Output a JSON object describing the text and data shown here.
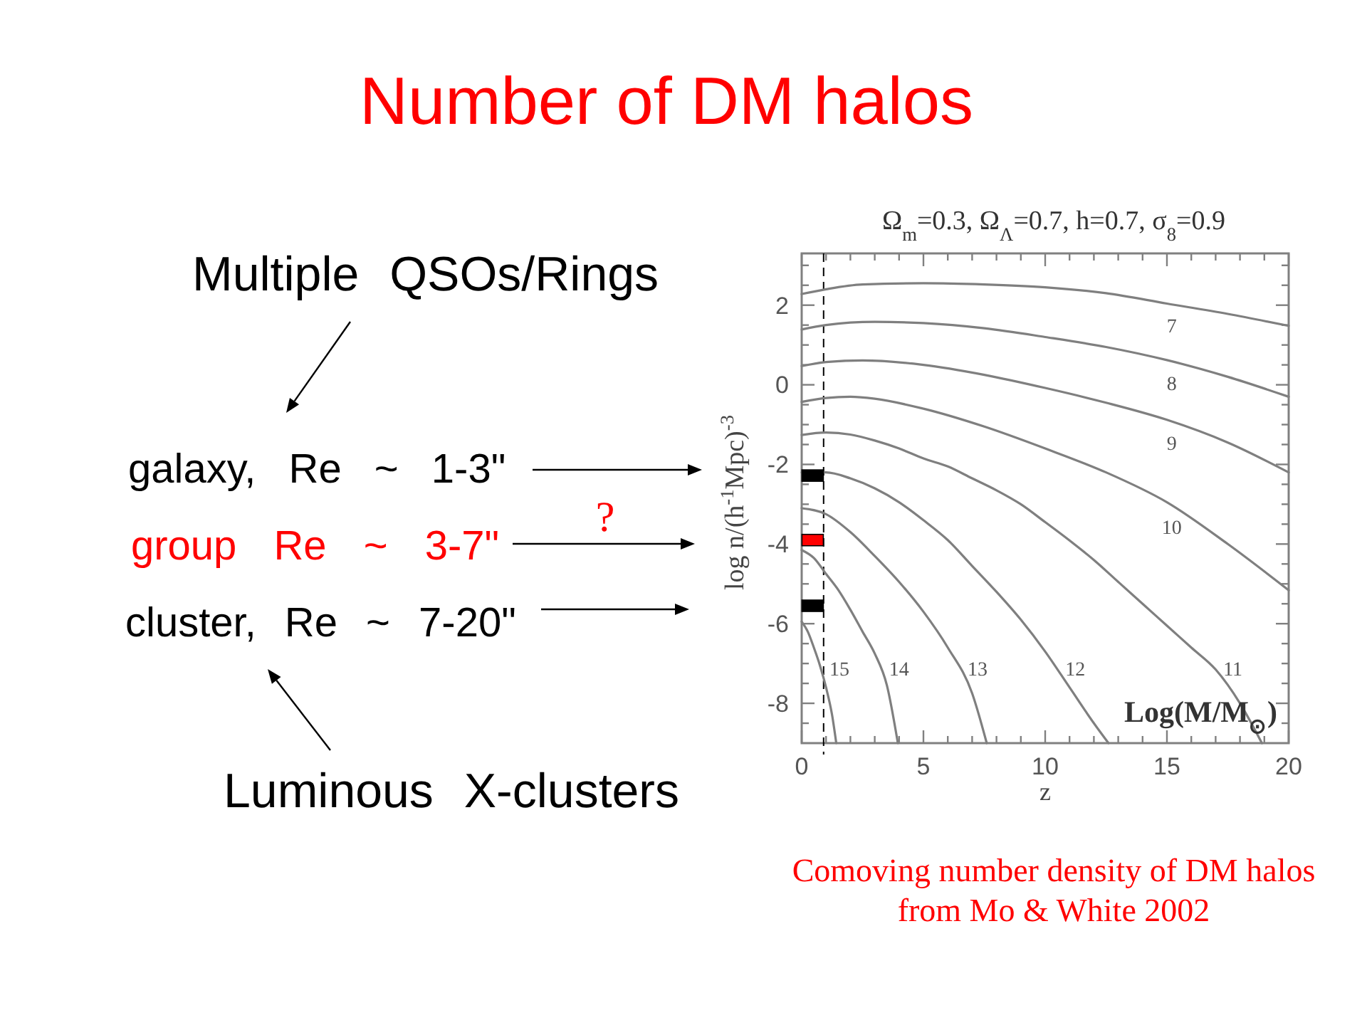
{
  "chart_data": {
    "type": "line",
    "title": "Number of DM halos",
    "subtitle": "Ω$_{m}$=0.3, Ω$_{Λ}$=0.7, h=0.7, σ$_{8}$=0.9",
    "xlabel": "z",
    "ylabel": "log n/(h$^{-1}$Mpc)$^{-3}$",
    "legend_title": "Log(M/M$_{⊙}$)",
    "legend": "bottom right",
    "xlim": [
      0,
      20
    ],
    "ylim": [
      -9,
      3.3
    ],
    "xticks": [
      0,
      {
        "value": 1,
        "label": null
      },
      {
        "value": 2,
        "label": null
      },
      {
        "value": 3,
        "label": null
      },
      {
        "value": 4,
        "label": null
      },
      5,
      {
        "value": 6,
        "label": null
      },
      {
        "value": 7,
        "label": null
      },
      {
        "value": 8,
        "label": null
      },
      {
        "value": 9,
        "label": null
      },
      10,
      {
        "value": 11,
        "label": null
      },
      {
        "value": 12,
        "label": null
      },
      {
        "value": 13,
        "label": null
      },
      {
        "value": 14,
        "label": null
      },
      15,
      {
        "value": 16,
        "label": null
      },
      {
        "value": 17,
        "label": null
      },
      {
        "value": 18,
        "label": null
      },
      {
        "value": 19,
        "label": null
      },
      20
    ],
    "yticks": [
      {
        "value": -8.5,
        "label": null
      },
      -8,
      {
        "value": -7.5,
        "label": null
      },
      {
        "value": -7,
        "label": null
      },
      {
        "value": -6.5,
        "label": null
      },
      -6,
      {
        "value": -5.5,
        "label": null
      },
      {
        "value": -5,
        "label": null
      },
      {
        "value": -4.5,
        "label": null
      },
      -4,
      {
        "value": -3.5,
        "label": null
      },
      {
        "value": -3,
        "label": null
      },
      {
        "value": -2.5,
        "label": null
      },
      -2,
      {
        "value": -1.5,
        "label": null
      },
      {
        "value": -1,
        "label": null
      },
      {
        "value": -0.5,
        "label": null
      },
      0,
      {
        "value": 0.5,
        "label": null
      },
      {
        "value": 1,
        "label": null
      },
      {
        "value": 1.5,
        "label": null
      },
      2,
      {
        "value": 2.5,
        "label": null
      },
      {
        "value": 3,
        "label": null
      }
    ],
    "series": [
      {
        "name": "7",
        "color": "#7f7f7f",
        "x": [
          0,
          1,
          2.5,
          5,
          7.5,
          10,
          12.5,
          15,
          17.5,
          20
        ],
        "values": [
          2.28,
          2.4,
          2.52,
          2.55,
          2.52,
          2.45,
          2.3,
          2.04,
          1.78,
          1.48
        ]
      },
      {
        "name": "8",
        "color": "#7f7f7f",
        "x": [
          0,
          1,
          3,
          5,
          7.5,
          10,
          12.5,
          15,
          17.5,
          20
        ],
        "values": [
          1.39,
          1.5,
          1.58,
          1.55,
          1.42,
          1.2,
          0.95,
          0.62,
          0.2,
          -0.3
        ]
      },
      {
        "name": "9",
        "color": "#7f7f7f",
        "x": [
          0,
          1,
          2.5,
          5,
          7.5,
          10,
          12.5,
          15,
          17.5,
          20
        ],
        "values": [
          0.47,
          0.57,
          0.61,
          0.5,
          0.25,
          -0.08,
          -0.45,
          -0.88,
          -1.45,
          -2.2
        ]
      },
      {
        "name": "10",
        "color": "#7f7f7f",
        "x": [
          0,
          1,
          2,
          3,
          5,
          7.5,
          10,
          12.5,
          15,
          17.5,
          20
        ],
        "values": [
          -0.43,
          -0.33,
          -0.3,
          -0.35,
          -0.6,
          -1.05,
          -1.6,
          -2.2,
          -2.95,
          -4.0,
          -5.16
        ]
      },
      {
        "name": "11",
        "color": "#7f7f7f",
        "x": [
          0,
          1,
          2,
          3,
          4,
          5,
          6,
          7,
          8,
          9,
          10,
          11,
          12,
          13,
          14,
          15,
          16,
          17,
          18,
          18.9
        ],
        "values": [
          -1.26,
          -1.2,
          -1.25,
          -1.4,
          -1.6,
          -1.85,
          -2.05,
          -2.35,
          -2.65,
          -3.0,
          -3.45,
          -3.91,
          -4.4,
          -4.95,
          -5.5,
          -6.05,
          -6.6,
          -7.15,
          -8.0,
          -9.0
        ]
      },
      {
        "name": "12",
        "color": "#7f7f7f",
        "x": [
          0,
          1,
          2,
          3,
          4,
          5,
          6,
          7,
          8,
          9,
          10,
          11,
          12,
          12.6
        ],
        "values": [
          -2.2,
          -2.2,
          -2.35,
          -2.6,
          -2.95,
          -3.4,
          -3.9,
          -4.55,
          -5.2,
          -5.9,
          -6.7,
          -7.6,
          -8.5,
          -9.0
        ]
      },
      {
        "name": "13",
        "color": "#7f7f7f",
        "x": [
          0,
          1,
          2,
          3,
          4,
          5,
          6,
          7,
          7.6
        ],
        "values": [
          -3.1,
          -3.25,
          -3.7,
          -4.3,
          -4.95,
          -5.7,
          -6.6,
          -7.75,
          -9.0
        ]
      },
      {
        "name": "14",
        "color": "#7f7f7f",
        "x": [
          0,
          0.5,
          1,
          1.5,
          2,
          2.5,
          3,
          3.5,
          3.95
        ],
        "values": [
          -4.15,
          -4.35,
          -4.75,
          -5.15,
          -5.65,
          -6.2,
          -6.75,
          -7.55,
          -9.0
        ]
      },
      {
        "name": "15",
        "color": "#7f7f7f",
        "x": [
          0,
          0.25,
          0.5,
          0.75,
          1,
          1.25,
          1.42
        ],
        "values": [
          -5.95,
          -6.2,
          -6.6,
          -7.05,
          -7.6,
          -8.3,
          -9.0
        ]
      },
      {
        "type": "scatter",
        "marker": "square",
        "x": [
          0.45,
          0.45,
          0.45
        ],
        "values": [
          -2.28,
          -3.9,
          -5.55
        ],
        "colors": [
          "#000000",
          "#ff0000",
          "#000000"
        ]
      }
    ],
    "ref_lines": [
      {
        "axis": "x",
        "value": 0.9,
        "color": "#000000",
        "line_style": "dashed"
      }
    ],
    "annotations": [
      "Multiple QSOs/Rings",
      "galaxy, Re ~ 1-3\"",
      "?",
      "group Re ~ 3-7\"",
      "cluster, Re ~ 7-20\"",
      "Luminous X-clusters",
      "Comoving number density of DM halos\nfrom Mo & White 2002"
    ]
  }
}
